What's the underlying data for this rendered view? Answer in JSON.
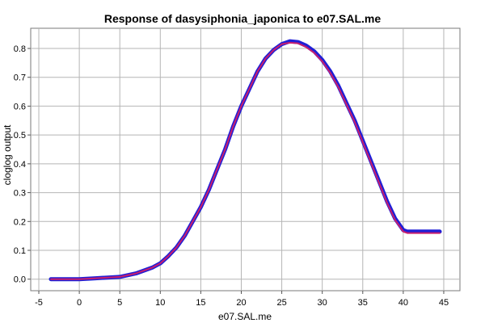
{
  "chart_data": {
    "type": "line",
    "title": "Response of dasysiphonia_japonica to e07.SAL.me",
    "xlabel": "e07.SAL.me",
    "ylabel": "cloglog output",
    "xlim": [
      -6,
      47
    ],
    "ylim": [
      -0.04,
      0.87
    ],
    "xticks": [
      -5,
      0,
      5,
      10,
      15,
      20,
      25,
      30,
      35,
      40,
      45
    ],
    "yticks": [
      0.0,
      0.1,
      0.2,
      0.3,
      0.4,
      0.5,
      0.6,
      0.7,
      0.8
    ],
    "xtick_labels": [
      "-5",
      "0",
      "5",
      "10",
      "15",
      "20",
      "25",
      "30",
      "35",
      "40",
      "45"
    ],
    "ytick_labels": [
      "0.0",
      "0.1",
      "0.2",
      "0.3",
      "0.4",
      "0.5",
      "0.6",
      "0.7",
      "0.8"
    ],
    "grid": true,
    "series": [
      {
        "color": "#1f1fd6",
        "x": [
          -3.5,
          0,
          2,
          5,
          7,
          9,
          10,
          11,
          12,
          13,
          14,
          15,
          16,
          17,
          18,
          19,
          20,
          21,
          22,
          23,
          24,
          25,
          26,
          27,
          28,
          29,
          30,
          31,
          32,
          33,
          34,
          35,
          36,
          37,
          38,
          39,
          40,
          40.5,
          44.5
        ],
        "y": [
          0.0,
          0.0,
          0.003,
          0.008,
          0.02,
          0.04,
          0.055,
          0.08,
          0.11,
          0.15,
          0.2,
          0.25,
          0.31,
          0.38,
          0.45,
          0.53,
          0.6,
          0.66,
          0.72,
          0.765,
          0.795,
          0.815,
          0.825,
          0.822,
          0.81,
          0.79,
          0.76,
          0.72,
          0.67,
          0.61,
          0.55,
          0.48,
          0.41,
          0.34,
          0.27,
          0.21,
          0.17,
          0.165,
          0.165
        ]
      },
      {
        "color": "#c81e6e",
        "x": [
          -3.5,
          0,
          2,
          5,
          7,
          9,
          10,
          11,
          12,
          13,
          14,
          15,
          16,
          17,
          18,
          19,
          20,
          21,
          22,
          23,
          24,
          25,
          26,
          27,
          28,
          29,
          30,
          31,
          32,
          33,
          34,
          35,
          36,
          37,
          38,
          39,
          40,
          40.5,
          44.5
        ],
        "y": [
          0.0,
          0.0,
          0.003,
          0.008,
          0.02,
          0.04,
          0.055,
          0.08,
          0.11,
          0.15,
          0.2,
          0.25,
          0.31,
          0.38,
          0.45,
          0.53,
          0.6,
          0.66,
          0.72,
          0.765,
          0.795,
          0.815,
          0.82,
          0.818,
          0.805,
          0.785,
          0.755,
          0.715,
          0.665,
          0.605,
          0.545,
          0.475,
          0.405,
          0.335,
          0.265,
          0.205,
          0.165,
          0.16,
          0.16
        ]
      }
    ]
  }
}
